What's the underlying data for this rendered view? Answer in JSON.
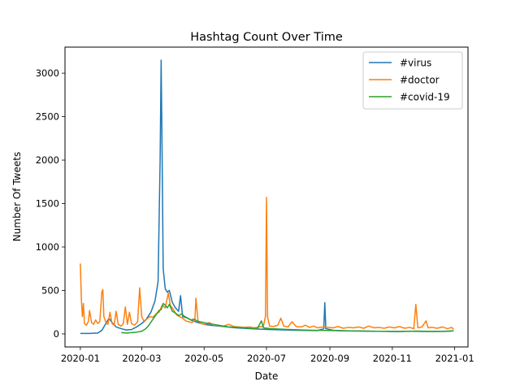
{
  "chart_data": {
    "type": "line",
    "title": "Hashtag Count Over Time",
    "xlabel": "Date",
    "ylabel": "Number Of Tweets",
    "xlim": [
      "2019-12-17",
      "2021-01-14"
    ],
    "ylim": [
      -150,
      3300
    ],
    "x_ticks": [
      {
        "date": "2020-01-01",
        "label": "2020-01"
      },
      {
        "date": "2020-03-01",
        "label": "2020-03"
      },
      {
        "date": "2020-05-01",
        "label": "2020-05"
      },
      {
        "date": "2020-07-01",
        "label": "2020-07"
      },
      {
        "date": "2020-09-01",
        "label": "2020-09"
      },
      {
        "date": "2020-11-01",
        "label": "2020-11"
      },
      {
        "date": "2021-01-01",
        "label": "2021-01"
      }
    ],
    "y_ticks": [
      0,
      500,
      1000,
      1500,
      2000,
      2500,
      3000
    ],
    "grid": false,
    "legend_position": "top-right",
    "series": [
      {
        "name": "#virus",
        "color": "#1f77b4",
        "points": [
          [
            "2020-01-01",
            5
          ],
          [
            "2020-01-10",
            5
          ],
          [
            "2020-01-18",
            10
          ],
          [
            "2020-01-22",
            40
          ],
          [
            "2020-01-26",
            120
          ],
          [
            "2020-01-29",
            180
          ],
          [
            "2020-02-01",
            130
          ],
          [
            "2020-02-05",
            80
          ],
          [
            "2020-02-10",
            60
          ],
          [
            "2020-02-15",
            45
          ],
          [
            "2020-02-20",
            50
          ],
          [
            "2020-02-25",
            80
          ],
          [
            "2020-03-01",
            120
          ],
          [
            "2020-03-05",
            160
          ],
          [
            "2020-03-10",
            250
          ],
          [
            "2020-03-14",
            380
          ],
          [
            "2020-03-17",
            600
          ],
          [
            "2020-03-19",
            2000
          ],
          [
            "2020-03-20",
            3150
          ],
          [
            "2020-03-21",
            2000
          ],
          [
            "2020-03-22",
            750
          ],
          [
            "2020-03-24",
            520
          ],
          [
            "2020-03-26",
            480
          ],
          [
            "2020-03-28",
            500
          ],
          [
            "2020-03-31",
            360
          ],
          [
            "2020-04-03",
            300
          ],
          [
            "2020-04-06",
            260
          ],
          [
            "2020-04-08",
            440
          ],
          [
            "2020-04-10",
            200
          ],
          [
            "2020-04-15",
            180
          ],
          [
            "2020-04-20",
            150
          ],
          [
            "2020-04-25",
            130
          ],
          [
            "2020-05-01",
            110
          ],
          [
            "2020-05-10",
            95
          ],
          [
            "2020-05-20",
            85
          ],
          [
            "2020-06-01",
            70
          ],
          [
            "2020-06-15",
            60
          ],
          [
            "2020-06-25",
            55
          ],
          [
            "2020-07-05",
            50
          ],
          [
            "2020-07-20",
            45
          ],
          [
            "2020-08-05",
            40
          ],
          [
            "2020-08-20",
            38
          ],
          [
            "2020-08-26",
            60
          ],
          [
            "2020-08-27",
            360
          ],
          [
            "2020-08-28",
            60
          ],
          [
            "2020-09-05",
            40
          ],
          [
            "2020-09-20",
            35
          ],
          [
            "2020-10-05",
            32
          ],
          [
            "2020-10-20",
            30
          ],
          [
            "2020-11-05",
            28
          ],
          [
            "2020-11-20",
            30
          ],
          [
            "2020-12-05",
            28
          ],
          [
            "2020-12-20",
            30
          ],
          [
            "2020-12-31",
            35
          ]
        ]
      },
      {
        "name": "#doctor",
        "color": "#ff7f0e",
        "points": [
          [
            "2020-01-01",
            810
          ],
          [
            "2020-01-02",
            400
          ],
          [
            "2020-01-03",
            200
          ],
          [
            "2020-01-04",
            350
          ],
          [
            "2020-01-05",
            120
          ],
          [
            "2020-01-07",
            100
          ],
          [
            "2020-01-09",
            150
          ],
          [
            "2020-01-10",
            270
          ],
          [
            "2020-01-12",
            130
          ],
          [
            "2020-01-14",
            110
          ],
          [
            "2020-01-16",
            160
          ],
          [
            "2020-01-18",
            120
          ],
          [
            "2020-01-20",
            140
          ],
          [
            "2020-01-22",
            480
          ],
          [
            "2020-01-23",
            510
          ],
          [
            "2020-01-24",
            200
          ],
          [
            "2020-01-26",
            130
          ],
          [
            "2020-01-28",
            110
          ],
          [
            "2020-01-30",
            250
          ],
          [
            "2020-02-01",
            120
          ],
          [
            "2020-02-03",
            100
          ],
          [
            "2020-02-05",
            260
          ],
          [
            "2020-02-07",
            110
          ],
          [
            "2020-02-10",
            90
          ],
          [
            "2020-02-12",
            120
          ],
          [
            "2020-02-14",
            310
          ],
          [
            "2020-02-16",
            110
          ],
          [
            "2020-02-18",
            250
          ],
          [
            "2020-02-20",
            120
          ],
          [
            "2020-02-23",
            100
          ],
          [
            "2020-02-26",
            140
          ],
          [
            "2020-02-28",
            530
          ],
          [
            "2020-03-01",
            200
          ],
          [
            "2020-03-03",
            150
          ],
          [
            "2020-03-06",
            170
          ],
          [
            "2020-03-09",
            200
          ],
          [
            "2020-03-12",
            190
          ],
          [
            "2020-03-15",
            230
          ],
          [
            "2020-03-18",
            250
          ],
          [
            "2020-03-21",
            330
          ],
          [
            "2020-03-24",
            300
          ],
          [
            "2020-03-27",
            470
          ],
          [
            "2020-03-29",
            330
          ],
          [
            "2020-04-01",
            280
          ],
          [
            "2020-04-04",
            220
          ],
          [
            "2020-04-07",
            200
          ],
          [
            "2020-04-10",
            180
          ],
          [
            "2020-04-13",
            150
          ],
          [
            "2020-04-16",
            140
          ],
          [
            "2020-04-19",
            130
          ],
          [
            "2020-04-22",
            160
          ],
          [
            "2020-04-23",
            410
          ],
          [
            "2020-04-25",
            150
          ],
          [
            "2020-04-28",
            120
          ],
          [
            "2020-05-02",
            110
          ],
          [
            "2020-05-06",
            130
          ],
          [
            "2020-05-10",
            100
          ],
          [
            "2020-05-15",
            95
          ],
          [
            "2020-05-20",
            90
          ],
          [
            "2020-05-25",
            110
          ],
          [
            "2020-05-30",
            85
          ],
          [
            "2020-06-04",
            80
          ],
          [
            "2020-06-09",
            75
          ],
          [
            "2020-06-14",
            80
          ],
          [
            "2020-06-19",
            70
          ],
          [
            "2020-06-24",
            80
          ],
          [
            "2020-06-28",
            90
          ],
          [
            "2020-06-30",
            200
          ],
          [
            "2020-07-01",
            1570
          ],
          [
            "2020-07-02",
            200
          ],
          [
            "2020-07-04",
            90
          ],
          [
            "2020-07-08",
            85
          ],
          [
            "2020-07-12",
            100
          ],
          [
            "2020-07-15",
            180
          ],
          [
            "2020-07-18",
            90
          ],
          [
            "2020-07-22",
            80
          ],
          [
            "2020-07-26",
            140
          ],
          [
            "2020-07-30",
            85
          ],
          [
            "2020-08-04",
            80
          ],
          [
            "2020-08-08",
            100
          ],
          [
            "2020-08-12",
            75
          ],
          [
            "2020-08-16",
            90
          ],
          [
            "2020-08-20",
            70
          ],
          [
            "2020-08-25",
            80
          ],
          [
            "2020-08-30",
            75
          ],
          [
            "2020-09-04",
            70
          ],
          [
            "2020-09-09",
            85
          ],
          [
            "2020-09-14",
            65
          ],
          [
            "2020-09-19",
            75
          ],
          [
            "2020-09-24",
            70
          ],
          [
            "2020-09-29",
            80
          ],
          [
            "2020-10-04",
            65
          ],
          [
            "2020-10-09",
            90
          ],
          [
            "2020-10-14",
            70
          ],
          [
            "2020-10-19",
            75
          ],
          [
            "2020-10-24",
            65
          ],
          [
            "2020-10-29",
            80
          ],
          [
            "2020-11-03",
            70
          ],
          [
            "2020-11-08",
            85
          ],
          [
            "2020-11-13",
            65
          ],
          [
            "2020-11-18",
            75
          ],
          [
            "2020-11-22",
            60
          ],
          [
            "2020-11-24",
            340
          ],
          [
            "2020-11-26",
            70
          ],
          [
            "2020-11-30",
            80
          ],
          [
            "2020-12-04",
            150
          ],
          [
            "2020-12-06",
            70
          ],
          [
            "2020-12-10",
            75
          ],
          [
            "2020-12-15",
            65
          ],
          [
            "2020-12-20",
            80
          ],
          [
            "2020-12-25",
            60
          ],
          [
            "2020-12-29",
            75
          ],
          [
            "2020-12-31",
            50
          ]
        ]
      },
      {
        "name": "#covid-19",
        "color": "#2ca02c",
        "points": [
          [
            "2020-02-10",
            15
          ],
          [
            "2020-02-15",
            10
          ],
          [
            "2020-02-20",
            15
          ],
          [
            "2020-02-25",
            20
          ],
          [
            "2020-03-01",
            30
          ],
          [
            "2020-03-05",
            60
          ],
          [
            "2020-03-08",
            100
          ],
          [
            "2020-03-12",
            170
          ],
          [
            "2020-03-15",
            220
          ],
          [
            "2020-03-18",
            270
          ],
          [
            "2020-03-20",
            280
          ],
          [
            "2020-03-22",
            350
          ],
          [
            "2020-03-24",
            330
          ],
          [
            "2020-03-26",
            300
          ],
          [
            "2020-03-28",
            340
          ],
          [
            "2020-03-31",
            260
          ],
          [
            "2020-04-03",
            240
          ],
          [
            "2020-04-06",
            210
          ],
          [
            "2020-04-09",
            230
          ],
          [
            "2020-04-12",
            200
          ],
          [
            "2020-04-15",
            180
          ],
          [
            "2020-04-18",
            160
          ],
          [
            "2020-04-21",
            170
          ],
          [
            "2020-04-24",
            150
          ],
          [
            "2020-04-27",
            140
          ],
          [
            "2020-05-01",
            130
          ],
          [
            "2020-05-05",
            120
          ],
          [
            "2020-05-10",
            110
          ],
          [
            "2020-05-15",
            100
          ],
          [
            "2020-05-20",
            90
          ],
          [
            "2020-05-25",
            80
          ],
          [
            "2020-06-01",
            75
          ],
          [
            "2020-06-08",
            70
          ],
          [
            "2020-06-15",
            65
          ],
          [
            "2020-06-22",
            60
          ],
          [
            "2020-06-26",
            150
          ],
          [
            "2020-06-28",
            70
          ],
          [
            "2020-07-05",
            60
          ],
          [
            "2020-07-15",
            55
          ],
          [
            "2020-07-25",
            50
          ],
          [
            "2020-08-05",
            45
          ],
          [
            "2020-08-15",
            42
          ],
          [
            "2020-08-25",
            40
          ],
          [
            "2020-09-05",
            38
          ],
          [
            "2020-09-15",
            35
          ],
          [
            "2020-09-25",
            33
          ],
          [
            "2020-10-05",
            32
          ],
          [
            "2020-10-15",
            30
          ],
          [
            "2020-10-25",
            30
          ],
          [
            "2020-11-05",
            28
          ],
          [
            "2020-11-15",
            30
          ],
          [
            "2020-11-25",
            32
          ],
          [
            "2020-12-05",
            30
          ],
          [
            "2020-12-15",
            28
          ],
          [
            "2020-12-25",
            30
          ],
          [
            "2020-12-31",
            35
          ]
        ]
      }
    ]
  }
}
